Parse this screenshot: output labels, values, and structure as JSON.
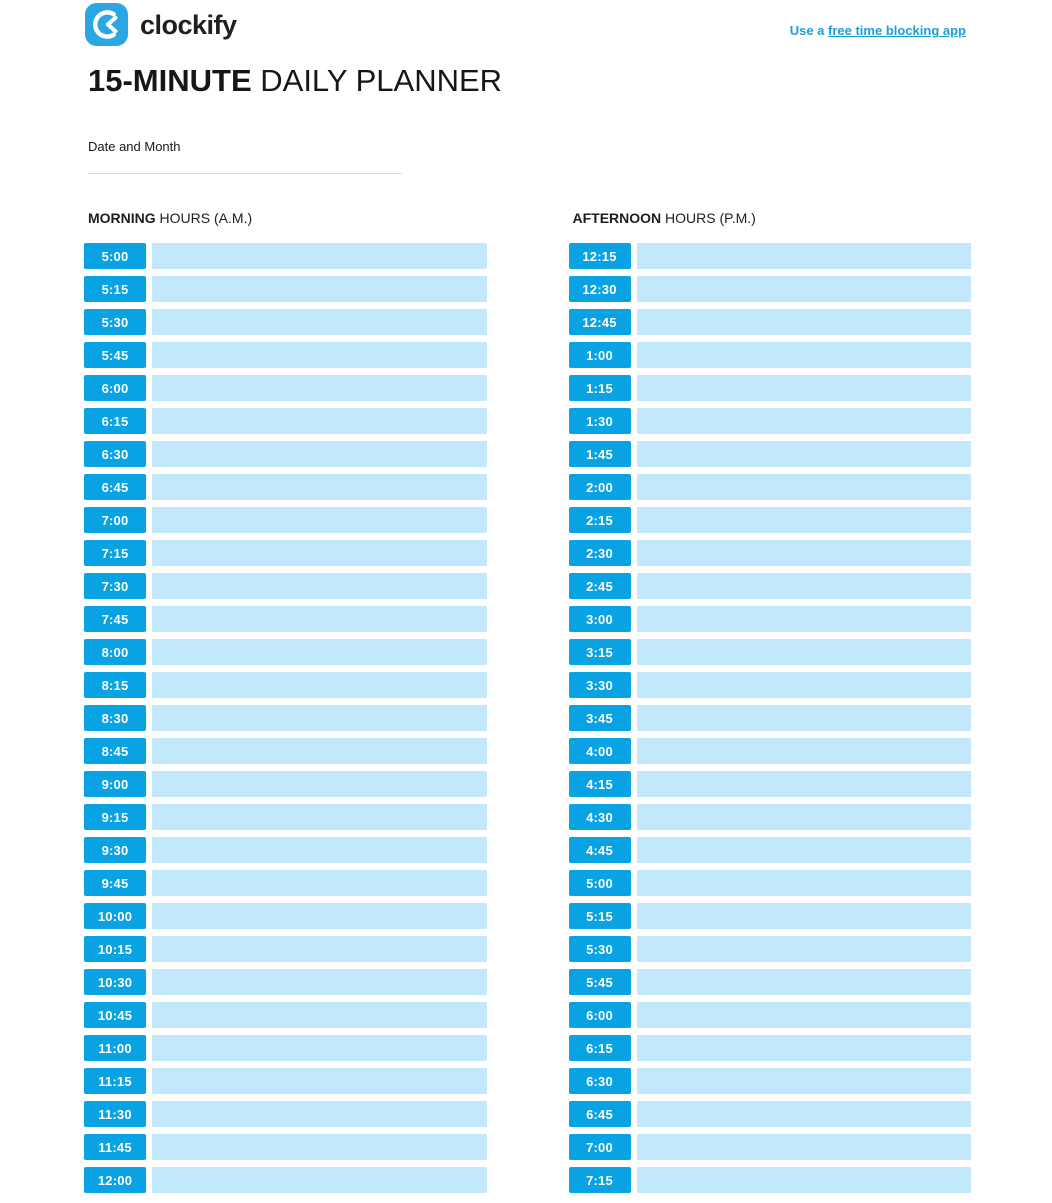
{
  "brand": {
    "name": "clockify",
    "logo_icon": "clockify-clock-icon"
  },
  "header": {
    "link_prefix": "Use a ",
    "link_underlined": "free time blocking app"
  },
  "title": {
    "bold": "15-MINUTE",
    "regular": " DAILY PLANNER"
  },
  "date_field": {
    "label": "Date and Month",
    "value": ""
  },
  "columns": [
    {
      "heading_bold": "MORNING",
      "heading_rest": " HOURS (A.M.)",
      "times": [
        "5:00",
        "5:15",
        "5:30",
        "5:45",
        "6:00",
        "6:15",
        "6:30",
        "6:45",
        "7:00",
        "7:15",
        "7:30",
        "7:45",
        "8:00",
        "8:15",
        "8:30",
        "8:45",
        "9:00",
        "9:15",
        "9:30",
        "9:45",
        "10:00",
        "10:15",
        "10:30",
        "10:45",
        "11:00",
        "11:15",
        "11:30",
        "11:45",
        "12:00"
      ]
    },
    {
      "heading_bold": "AFTERNOON",
      "heading_rest": " HOURS (P.M.)",
      "times": [
        "12:15",
        "12:30",
        "12:45",
        "1:00",
        "1:15",
        "1:30",
        "1:45",
        "2:00",
        "2:15",
        "2:30",
        "2:45",
        "3:00",
        "3:15",
        "3:30",
        "3:45",
        "4:00",
        "4:15",
        "4:30",
        "4:45",
        "5:00",
        "5:15",
        "5:30",
        "5:45",
        "6:00",
        "6:15",
        "6:30",
        "6:45",
        "7:00",
        "7:15"
      ]
    }
  ],
  "colors": {
    "badge_blue": "#09A2E3",
    "slot_light_blue": "#C3E7FB",
    "link_blue": "#1B9FD8",
    "logo_blue": "#2AA7E2"
  }
}
